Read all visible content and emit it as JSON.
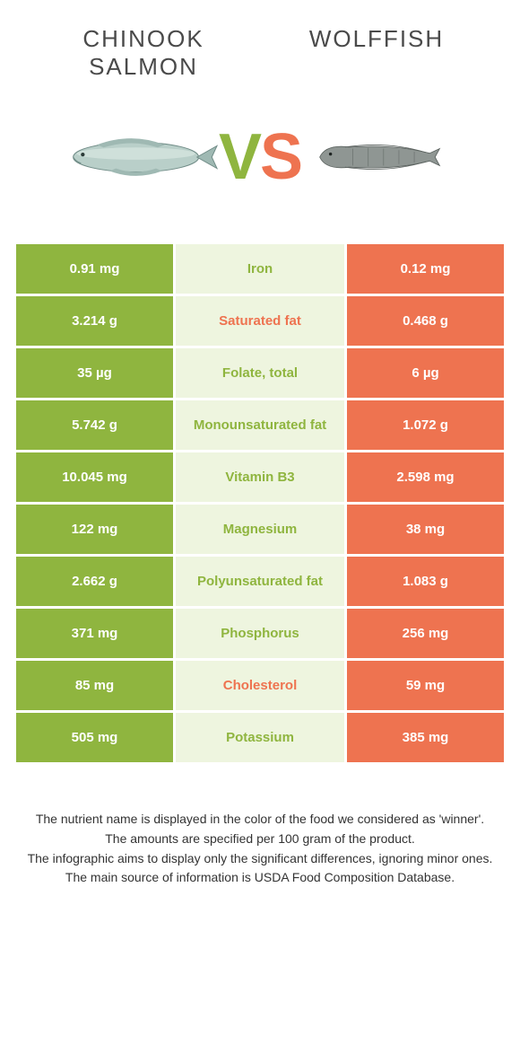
{
  "colors": {
    "left": "#8fb53f",
    "right": "#ee7350",
    "mid_bg": "#eef5df",
    "title_text": "#4a4a4a",
    "cell_text": "#ffffff"
  },
  "header": {
    "left_title": "CHINOOK SALMON",
    "right_title": "WOLFFISH",
    "vs_v": "V",
    "vs_s": "S"
  },
  "rows": [
    {
      "left": "0.91 mg",
      "label": "Iron",
      "right": "0.12 mg",
      "winner": "left"
    },
    {
      "left": "3.214 g",
      "label": "Saturated fat",
      "right": "0.468 g",
      "winner": "right"
    },
    {
      "left": "35 µg",
      "label": "Folate, total",
      "right": "6 µg",
      "winner": "left"
    },
    {
      "left": "5.742 g",
      "label": "Monounsaturated fat",
      "right": "1.072 g",
      "winner": "left"
    },
    {
      "left": "10.045 mg",
      "label": "Vitamin B3",
      "right": "2.598 mg",
      "winner": "left"
    },
    {
      "left": "122 mg",
      "label": "Magnesium",
      "right": "38 mg",
      "winner": "left"
    },
    {
      "left": "2.662 g",
      "label": "Polyunsaturated fat",
      "right": "1.083 g",
      "winner": "left"
    },
    {
      "left": "371 mg",
      "label": "Phosphorus",
      "right": "256 mg",
      "winner": "left"
    },
    {
      "left": "85 mg",
      "label": "Cholesterol",
      "right": "59 mg",
      "winner": "right"
    },
    {
      "left": "505 mg",
      "label": "Potassium",
      "right": "385 mg",
      "winner": "left"
    }
  ],
  "footnotes": {
    "l1": "The nutrient name is displayed in the color of the food we considered as 'winner'.",
    "l2": "The amounts are specified per 100 gram of the product.",
    "l3": "The infographic aims to display only the significant differences, ignoring minor ones.",
    "l4": "The main source of information is USDA Food Composition Database."
  }
}
